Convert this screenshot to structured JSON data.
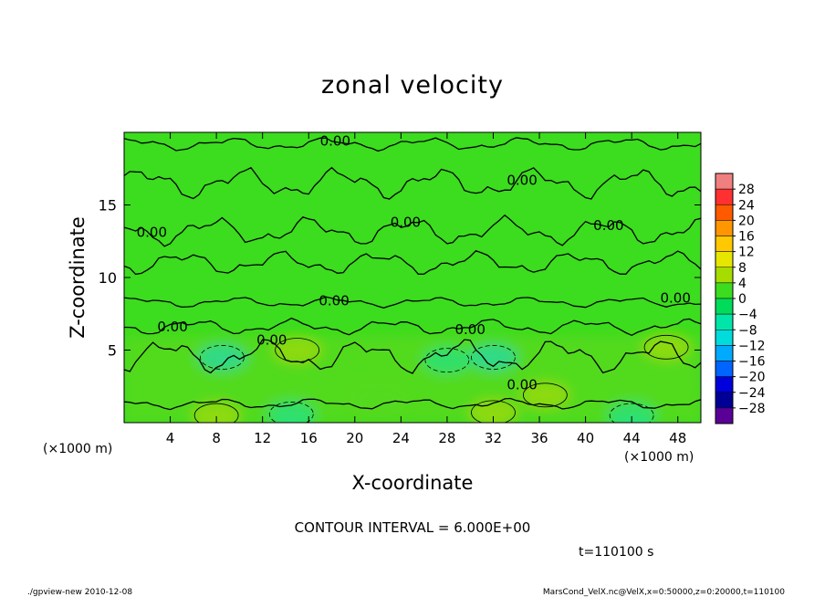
{
  "chart_data": {
    "type": "heatmap",
    "title": "zonal velocity",
    "xlabel": "X-coordinate",
    "ylabel": "Z-coordinate",
    "x_unit_left": "(×1000 m)",
    "x_unit_right": "(×1000 m)",
    "xlim": [
      0,
      50
    ],
    "ylim": [
      0,
      20
    ],
    "xticks": [
      4,
      8,
      12,
      16,
      20,
      24,
      28,
      32,
      36,
      40,
      44,
      48
    ],
    "yticks": [
      5,
      10,
      15
    ],
    "colorbar": {
      "levels": [
        "28",
        "24",
        "20",
        "16",
        "12",
        "8",
        "4",
        "0",
        "−4",
        "−8",
        "−12",
        "−16",
        "−20",
        "−24",
        "−28"
      ],
      "colors": [
        "#f08080",
        "#ff3030",
        "#ff5a00",
        "#ff9600",
        "#ffc800",
        "#e6e600",
        "#a6dc00",
        "#3cdc1e",
        "#00dc5a",
        "#00e6a8",
        "#00dcdc",
        "#00aaff",
        "#0064ff",
        "#0000dc",
        "#000096",
        "#5a0096"
      ]
    },
    "contour_labels": [
      {
        "text": "0.00",
        "x": 18.3,
        "z": 19.4
      },
      {
        "text": "0.00",
        "x": 34.5,
        "z": 16.7
      },
      {
        "text": "0.00",
        "x": 2.4,
        "z": 13.1
      },
      {
        "text": "0.00",
        "x": 24.4,
        "z": 13.8
      },
      {
        "text": "0.00",
        "x": 42.0,
        "z": 13.6
      },
      {
        "text": "0.00",
        "x": 18.2,
        "z": 8.4
      },
      {
        "text": "0.00",
        "x": 47.8,
        "z": 8.6
      },
      {
        "text": "0.00",
        "x": 4.2,
        "z": 6.6
      },
      {
        "text": "0.00",
        "x": 12.8,
        "z": 5.7
      },
      {
        "text": "0.00",
        "x": 30.0,
        "z": 6.4
      },
      {
        "text": "0.00",
        "x": 34.5,
        "z": 2.6
      }
    ],
    "blobs": [
      {
        "x": 8.5,
        "z": 4.5,
        "v": -10
      },
      {
        "x": 15,
        "z": 5,
        "v": 6
      },
      {
        "x": 32,
        "z": 4.5,
        "v": -9
      },
      {
        "x": 28,
        "z": 4.3,
        "v": -6
      },
      {
        "x": 47,
        "z": 5.2,
        "v": 6
      },
      {
        "x": 36.5,
        "z": 1.9,
        "v": 6
      },
      {
        "x": 8,
        "z": 0.5,
        "v": 5
      },
      {
        "x": 32,
        "z": 0.7,
        "v": 5
      },
      {
        "x": 14.5,
        "z": 0.6,
        "v": -7
      },
      {
        "x": 44,
        "z": 0.5,
        "v": -6
      },
      {
        "x": 22,
        "z": 1.5,
        "v": 3
      }
    ]
  },
  "contour_interval": "CONTOUR INTERVAL = 6.000E+00",
  "time_label": "t=110100 s",
  "footer_left": "./gpview-new  2010-12-08",
  "footer_right": "MarsCond_VelX.nc@VelX,x=0:50000,z=0:20000,t=110100"
}
